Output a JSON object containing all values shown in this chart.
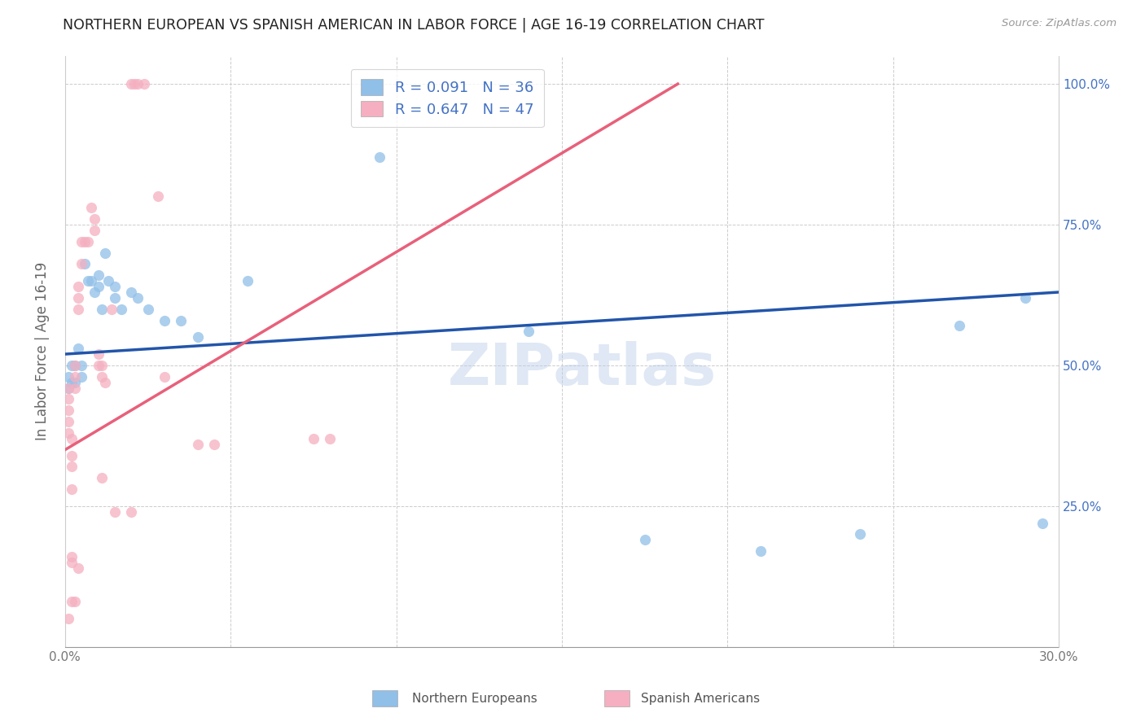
{
  "title": "NORTHERN EUROPEAN VS SPANISH AMERICAN IN LABOR FORCE | AGE 16-19 CORRELATION CHART",
  "source": "Source: ZipAtlas.com",
  "ylabel": "In Labor Force | Age 16-19",
  "xlim": [
    0.0,
    0.3
  ],
  "ylim": [
    0.0,
    1.05
  ],
  "xticks": [
    0.0,
    0.05,
    0.1,
    0.15,
    0.2,
    0.25,
    0.3
  ],
  "xtick_labels": [
    "0.0%",
    "",
    "",
    "",
    "",
    "",
    "30.0%"
  ],
  "ytick_labels": [
    "",
    "25.0%",
    "50.0%",
    "75.0%",
    "100.0%"
  ],
  "yticks": [
    0.0,
    0.25,
    0.5,
    0.75,
    1.0
  ],
  "blue_color": "#90bfe8",
  "pink_color": "#f5afc0",
  "blue_line_color": "#2255aa",
  "pink_line_color": "#e8607a",
  "label_color": "#4472C4",
  "watermark": "ZIPatlas",
  "blue_R": 0.091,
  "blue_N": 36,
  "pink_R": 0.647,
  "pink_N": 47,
  "blue_line": [
    0.0,
    0.52,
    0.3,
    0.63
  ],
  "pink_line": [
    0.0,
    0.35,
    0.185,
    1.0
  ],
  "blue_points": [
    [
      0.001,
      0.46
    ],
    [
      0.001,
      0.48
    ],
    [
      0.002,
      0.5
    ],
    [
      0.002,
      0.47
    ],
    [
      0.003,
      0.5
    ],
    [
      0.003,
      0.47
    ],
    [
      0.004,
      0.53
    ],
    [
      0.005,
      0.5
    ],
    [
      0.005,
      0.48
    ],
    [
      0.006,
      0.68
    ],
    [
      0.007,
      0.65
    ],
    [
      0.008,
      0.65
    ],
    [
      0.009,
      0.63
    ],
    [
      0.01,
      0.66
    ],
    [
      0.01,
      0.64
    ],
    [
      0.011,
      0.6
    ],
    [
      0.012,
      0.7
    ],
    [
      0.013,
      0.65
    ],
    [
      0.015,
      0.62
    ],
    [
      0.015,
      0.64
    ],
    [
      0.017,
      0.6
    ],
    [
      0.02,
      0.63
    ],
    [
      0.022,
      0.62
    ],
    [
      0.025,
      0.6
    ],
    [
      0.03,
      0.58
    ],
    [
      0.035,
      0.58
    ],
    [
      0.04,
      0.55
    ],
    [
      0.055,
      0.65
    ],
    [
      0.095,
      0.87
    ],
    [
      0.14,
      0.56
    ],
    [
      0.175,
      0.19
    ],
    [
      0.21,
      0.17
    ],
    [
      0.24,
      0.2
    ],
    [
      0.27,
      0.57
    ],
    [
      0.29,
      0.62
    ],
    [
      0.295,
      0.22
    ]
  ],
  "pink_points": [
    [
      0.001,
      0.46
    ],
    [
      0.001,
      0.44
    ],
    [
      0.001,
      0.42
    ],
    [
      0.001,
      0.4
    ],
    [
      0.001,
      0.38
    ],
    [
      0.002,
      0.37
    ],
    [
      0.002,
      0.34
    ],
    [
      0.002,
      0.32
    ],
    [
      0.002,
      0.28
    ],
    [
      0.002,
      0.16
    ],
    [
      0.003,
      0.5
    ],
    [
      0.003,
      0.48
    ],
    [
      0.003,
      0.46
    ],
    [
      0.004,
      0.62
    ],
    [
      0.004,
      0.64
    ],
    [
      0.004,
      0.6
    ],
    [
      0.005,
      0.72
    ],
    [
      0.005,
      0.68
    ],
    [
      0.006,
      0.72
    ],
    [
      0.007,
      0.72
    ],
    [
      0.008,
      0.78
    ],
    [
      0.009,
      0.76
    ],
    [
      0.009,
      0.74
    ],
    [
      0.01,
      0.5
    ],
    [
      0.01,
      0.52
    ],
    [
      0.011,
      0.5
    ],
    [
      0.011,
      0.48
    ],
    [
      0.012,
      0.47
    ],
    [
      0.014,
      0.6
    ],
    [
      0.02,
      1.0
    ],
    [
      0.021,
      1.0
    ],
    [
      0.022,
      1.0
    ],
    [
      0.024,
      1.0
    ],
    [
      0.028,
      0.8
    ],
    [
      0.03,
      0.48
    ],
    [
      0.04,
      0.36
    ],
    [
      0.045,
      0.36
    ],
    [
      0.075,
      0.37
    ],
    [
      0.08,
      0.37
    ],
    [
      0.003,
      0.08
    ],
    [
      0.004,
      0.14
    ],
    [
      0.002,
      0.08
    ],
    [
      0.002,
      0.15
    ],
    [
      0.001,
      0.05
    ],
    [
      0.011,
      0.3
    ],
    [
      0.015,
      0.24
    ],
    [
      0.02,
      0.24
    ]
  ]
}
